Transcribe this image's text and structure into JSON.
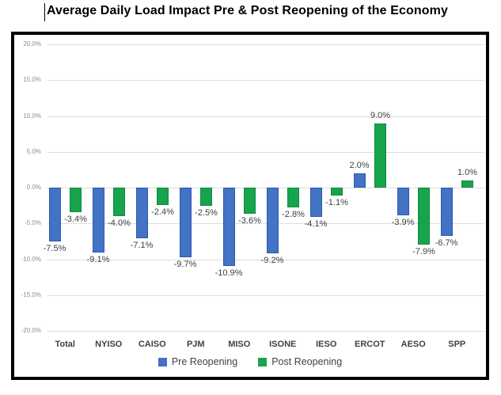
{
  "title": "Average Daily Load Impact Pre & Post Reopening of the Economy",
  "colors": {
    "pre": "#4472C4",
    "pre_border": "#2A5CAA",
    "post": "#18A34D",
    "post_border": "#128A40",
    "gridline": "#dcdcdc",
    "axis_text": "#8e8e8e",
    "label_text": "#404040",
    "frame_border": "#000000"
  },
  "chart_data": {
    "type": "bar",
    "title": "Average Daily Load Impact Pre & Post Reopening of the Economy",
    "categories": [
      "Total",
      "NYISO",
      "CAISO",
      "PJM",
      "MISO",
      "ISONE",
      "IESO",
      "ERCOT",
      "AESO",
      "SPP"
    ],
    "series": [
      {
        "name": "Pre Reopening",
        "color": "#4472C4",
        "border": "#2A5CAA",
        "values": [
          -7.5,
          -9.1,
          -7.1,
          -9.7,
          -10.9,
          -9.2,
          -4.1,
          2.0,
          -3.9,
          -6.7
        ],
        "labels": [
          "-7.5%",
          "-9.1%",
          "-7.1%",
          "-9.7%",
          "-10.9%",
          "-9.2%",
          "-4.1%",
          "2.0%",
          "-3.9%",
          "-6.7%"
        ]
      },
      {
        "name": "Post Reopening",
        "color": "#18A34D",
        "border": "#128A40",
        "values": [
          -3.4,
          -4.0,
          -2.4,
          -2.5,
          -3.6,
          -2.8,
          -1.1,
          9.0,
          -7.9,
          1.0
        ],
        "labels": [
          "-3.4%",
          "-4.0%",
          "-2.4%",
          "-2.5%",
          "-3.6%",
          "-2.8%",
          "-1.1%",
          "9.0%",
          "-7.9%",
          "1.0%"
        ]
      }
    ],
    "y_ticks": [
      {
        "label": "20.0%",
        "value": 20
      },
      {
        "label": "15.0%",
        "value": 15
      },
      {
        "label": "10.0%",
        "value": 10
      },
      {
        "label": "5.0%",
        "value": 5
      },
      {
        "label": "0.0%",
        "value": 0
      },
      {
        "label": "-5.0%",
        "value": -5
      },
      {
        "label": "-10.0%",
        "value": -10
      },
      {
        "label": "-15.0%",
        "value": -15
      },
      {
        "label": "-20.0%",
        "value": -20
      }
    ],
    "ylim": [
      -20,
      20
    ],
    "grid": true,
    "legend_position": "bottom",
    "data_labels_shown": true
  },
  "legend": {
    "items": [
      {
        "label": "Pre Reopening",
        "color": "#4472C4"
      },
      {
        "label": "Post Reopening",
        "color": "#18A34D"
      }
    ]
  }
}
